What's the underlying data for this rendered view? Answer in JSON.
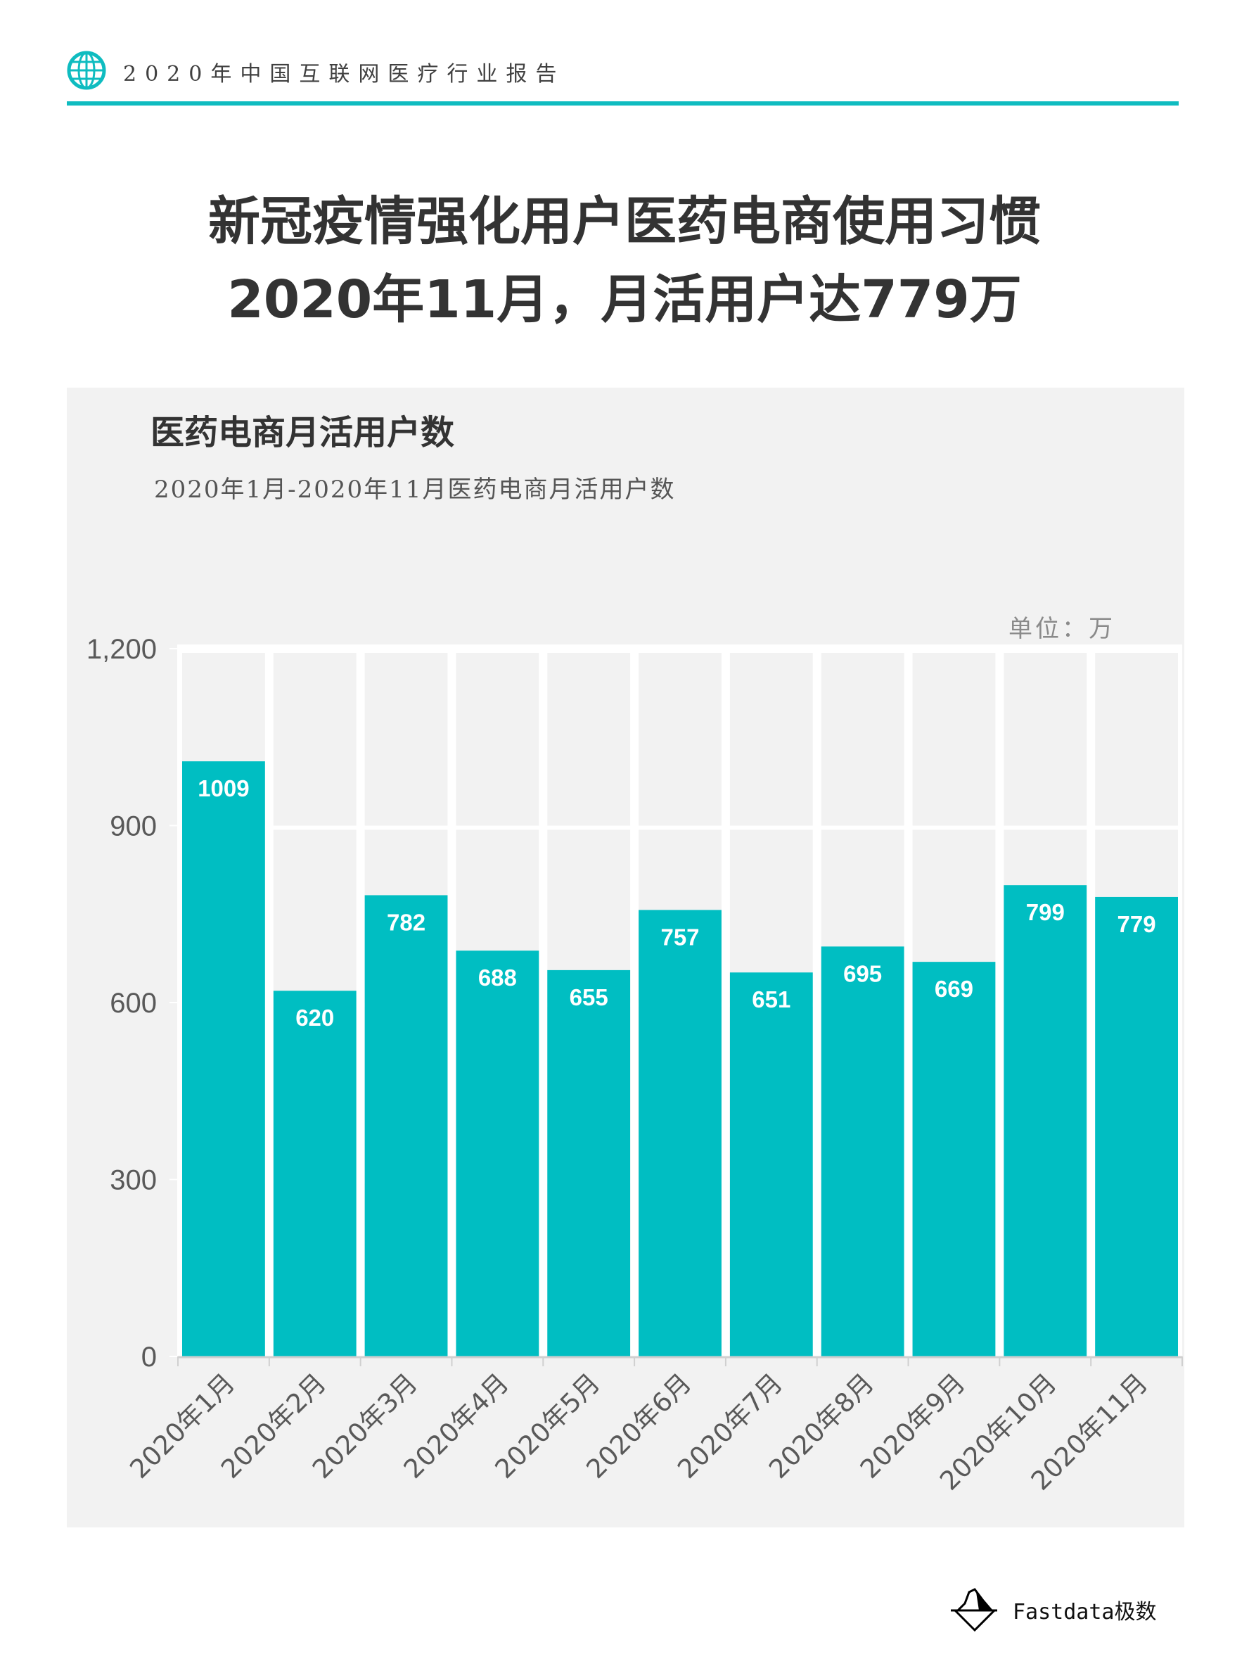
{
  "header": {
    "report_title": "2020年中国互联网医疗行业报告",
    "icon": "globe-icon",
    "accent": "#0fbcc0"
  },
  "title": {
    "line1": "新冠疫情强化用户医药电商使用习惯",
    "line2": "2020年11月，月活用户达779万"
  },
  "footer": {
    "brand": "Fastdata极数"
  },
  "chart_data": {
    "type": "bar",
    "title": "医药电商月活用户数",
    "subtitle": "2020年1月-2020年11月医药电商月活用户数",
    "unit_label": "单位：万",
    "categories": [
      "2020年1月",
      "2020年2月",
      "2020年3月",
      "2020年4月",
      "2020年5月",
      "2020年6月",
      "2020年7月",
      "2020年8月",
      "2020年9月",
      "2020年10月",
      "2020年11月"
    ],
    "values": [
      1009,
      620,
      782,
      688,
      655,
      757,
      651,
      695,
      669,
      799,
      779
    ],
    "ylim": [
      0,
      1200
    ],
    "yticks": [
      0,
      300,
      600,
      900,
      1200
    ],
    "ytick_labels": [
      "0",
      "300",
      "600",
      "900",
      "1,200"
    ],
    "bar_color": "#00bec2",
    "grid": true,
    "xlabel": "",
    "ylabel": ""
  }
}
